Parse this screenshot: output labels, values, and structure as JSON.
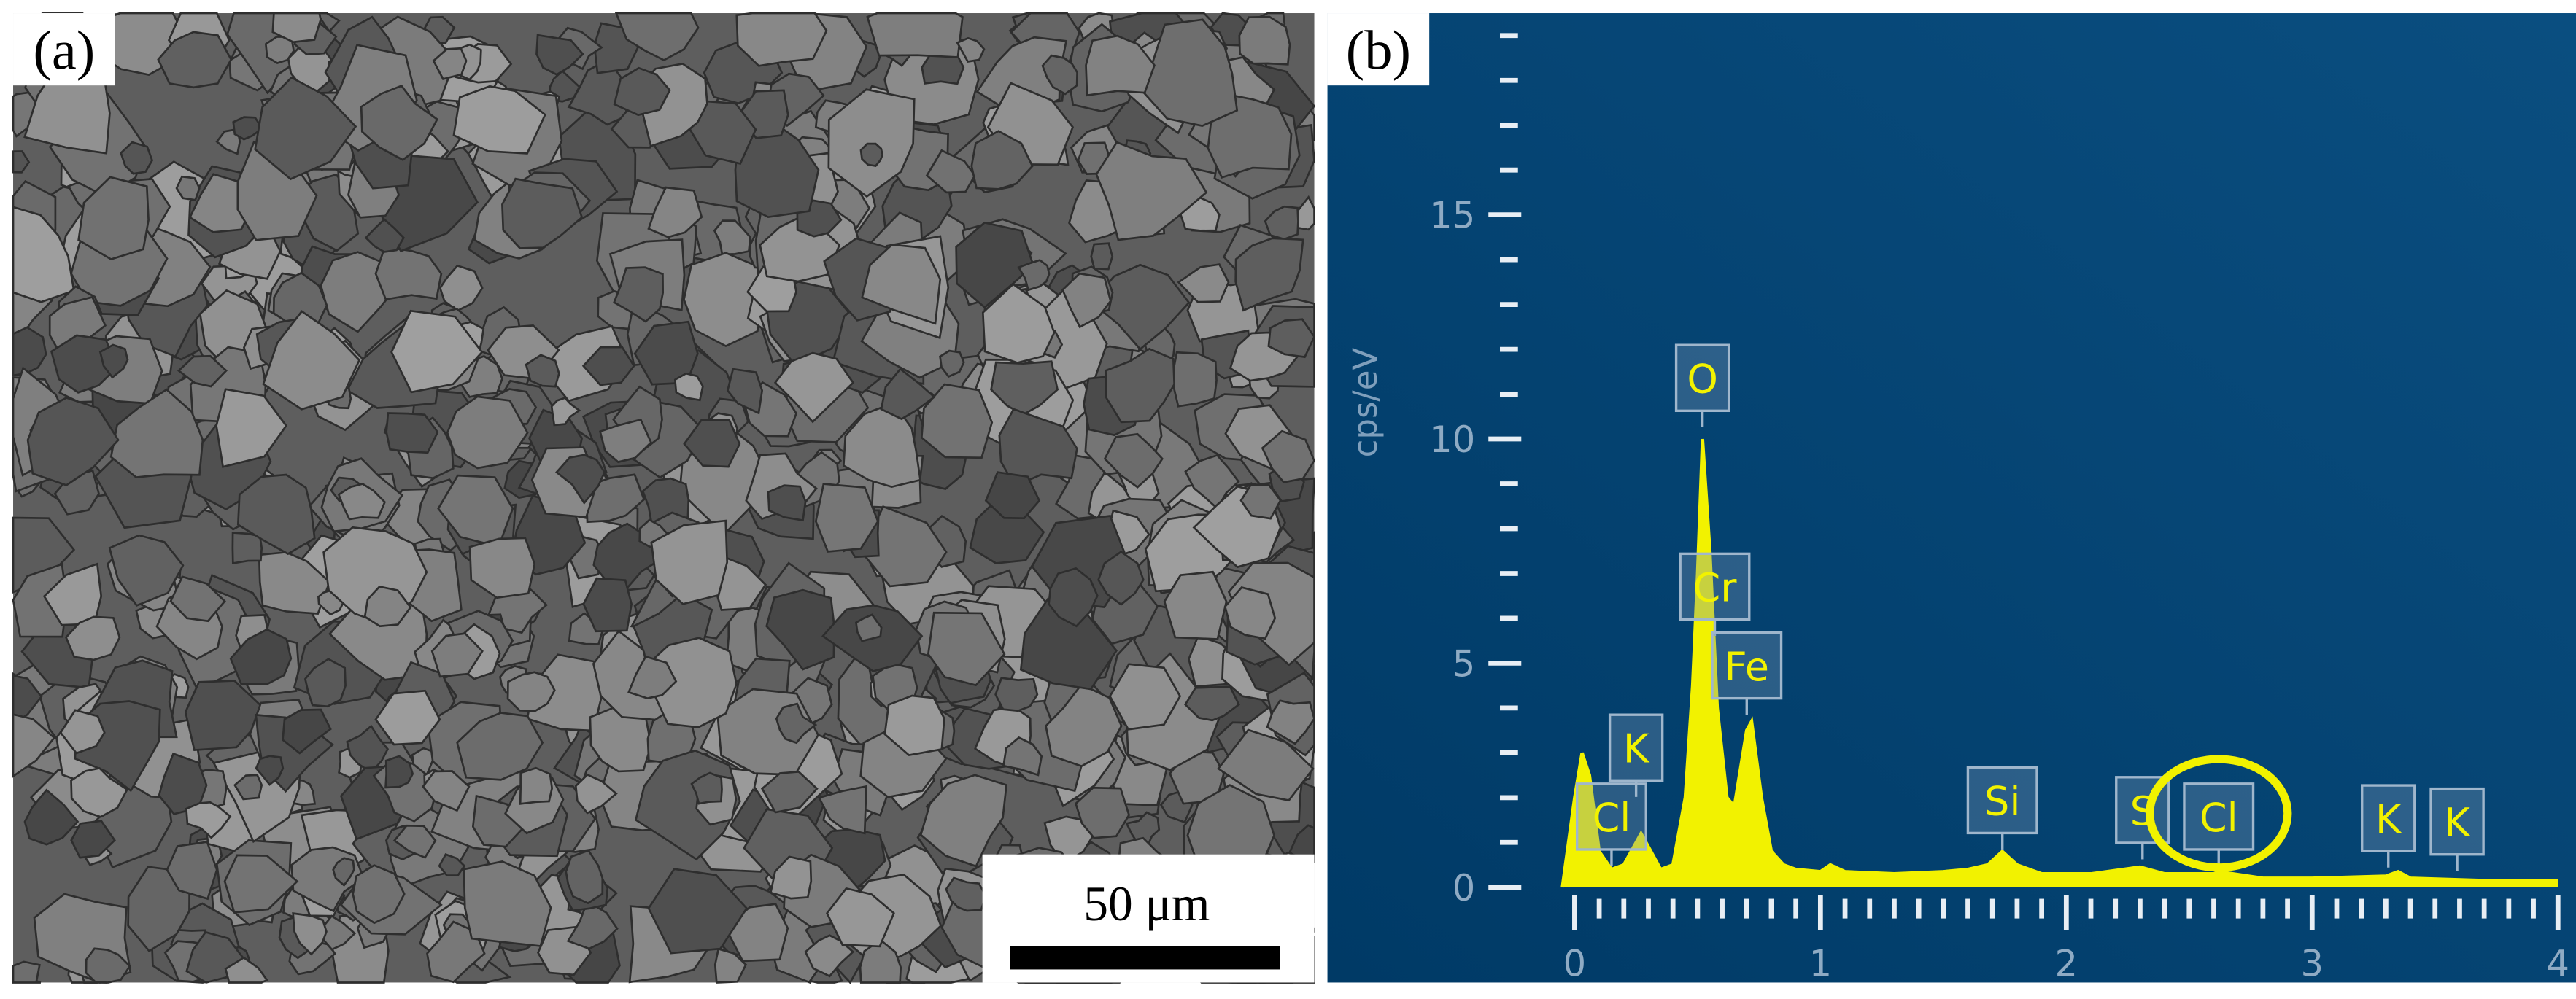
{
  "panel_a": {
    "label": "(a)",
    "scale_bar": "50 μm"
  },
  "chart_data": {
    "type": "area",
    "panel_label": "(b)",
    "y_label": "cps/eV",
    "color": "#f2f200",
    "x": [
      -0.05,
      0.0,
      0.03,
      0.06,
      0.1,
      0.15,
      0.2,
      0.27,
      0.3,
      0.35,
      0.4,
      0.45,
      0.48,
      0.5,
      0.52,
      0.55,
      0.58,
      0.62,
      0.65,
      0.7,
      0.72,
      0.76,
      0.8,
      0.85,
      0.9,
      1.0,
      1.04,
      1.1,
      1.3,
      1.5,
      1.6,
      1.68,
      1.74,
      1.8,
      1.9,
      2.1,
      2.3,
      2.4,
      2.6,
      2.62,
      2.8,
      3.0,
      3.3,
      3.35,
      3.4,
      3.7,
      4.0
    ],
    "values": [
      0,
      2.0,
      3.0,
      2.5,
      0.8,
      0.4,
      0.5,
      1.2,
      0.9,
      0.4,
      0.5,
      2.0,
      4.5,
      7.0,
      10.0,
      7.5,
      4.0,
      2.0,
      1.8,
      3.5,
      3.7,
      2.0,
      0.8,
      0.5,
      0.4,
      0.35,
      0.5,
      0.35,
      0.3,
      0.35,
      0.4,
      0.5,
      0.8,
      0.5,
      0.3,
      0.3,
      0.45,
      0.3,
      0.3,
      0.35,
      0.2,
      0.2,
      0.25,
      0.35,
      0.2,
      0.15,
      0.15
    ],
    "xlim": [
      -0.07,
      4.02
    ],
    "ylim": [
      0,
      19.5
    ],
    "xticks": [
      0,
      1,
      2,
      3,
      4
    ],
    "yticks": [
      0,
      5,
      10,
      15
    ],
    "yminorticks": [
      1,
      2,
      3,
      4,
      6,
      7,
      8,
      9,
      11,
      12,
      13,
      14,
      16,
      17,
      18,
      19
    ],
    "xminorticks": [
      0.1,
      0.2,
      0.3,
      0.4,
      0.5,
      0.6,
      0.7,
      0.8,
      0.9,
      1.1,
      1.2,
      1.3,
      1.4,
      1.5,
      1.6,
      1.7,
      1.8,
      1.9,
      2.1,
      2.2,
      2.3,
      2.4,
      2.5,
      2.6,
      2.7,
      2.8,
      2.9,
      3.1,
      3.2,
      3.3,
      3.4,
      3.5,
      3.6,
      3.7,
      3.8,
      3.9
    ],
    "peak_labels": [
      {
        "label": "Cl",
        "x": 0.15
      },
      {
        "label": "K",
        "x": 0.25
      },
      {
        "label": "O",
        "x": 0.52
      },
      {
        "label": "Cr",
        "x": 0.57
      },
      {
        "label": "Fe",
        "x": 0.7
      },
      {
        "label": "Si",
        "x": 1.74
      },
      {
        "label": "S",
        "x": 2.31
      },
      {
        "label": "Cl",
        "x": 2.62
      },
      {
        "label": "K",
        "x": 3.31
      },
      {
        "label": "K",
        "x": 3.59
      }
    ],
    "highlight": "Cl"
  }
}
